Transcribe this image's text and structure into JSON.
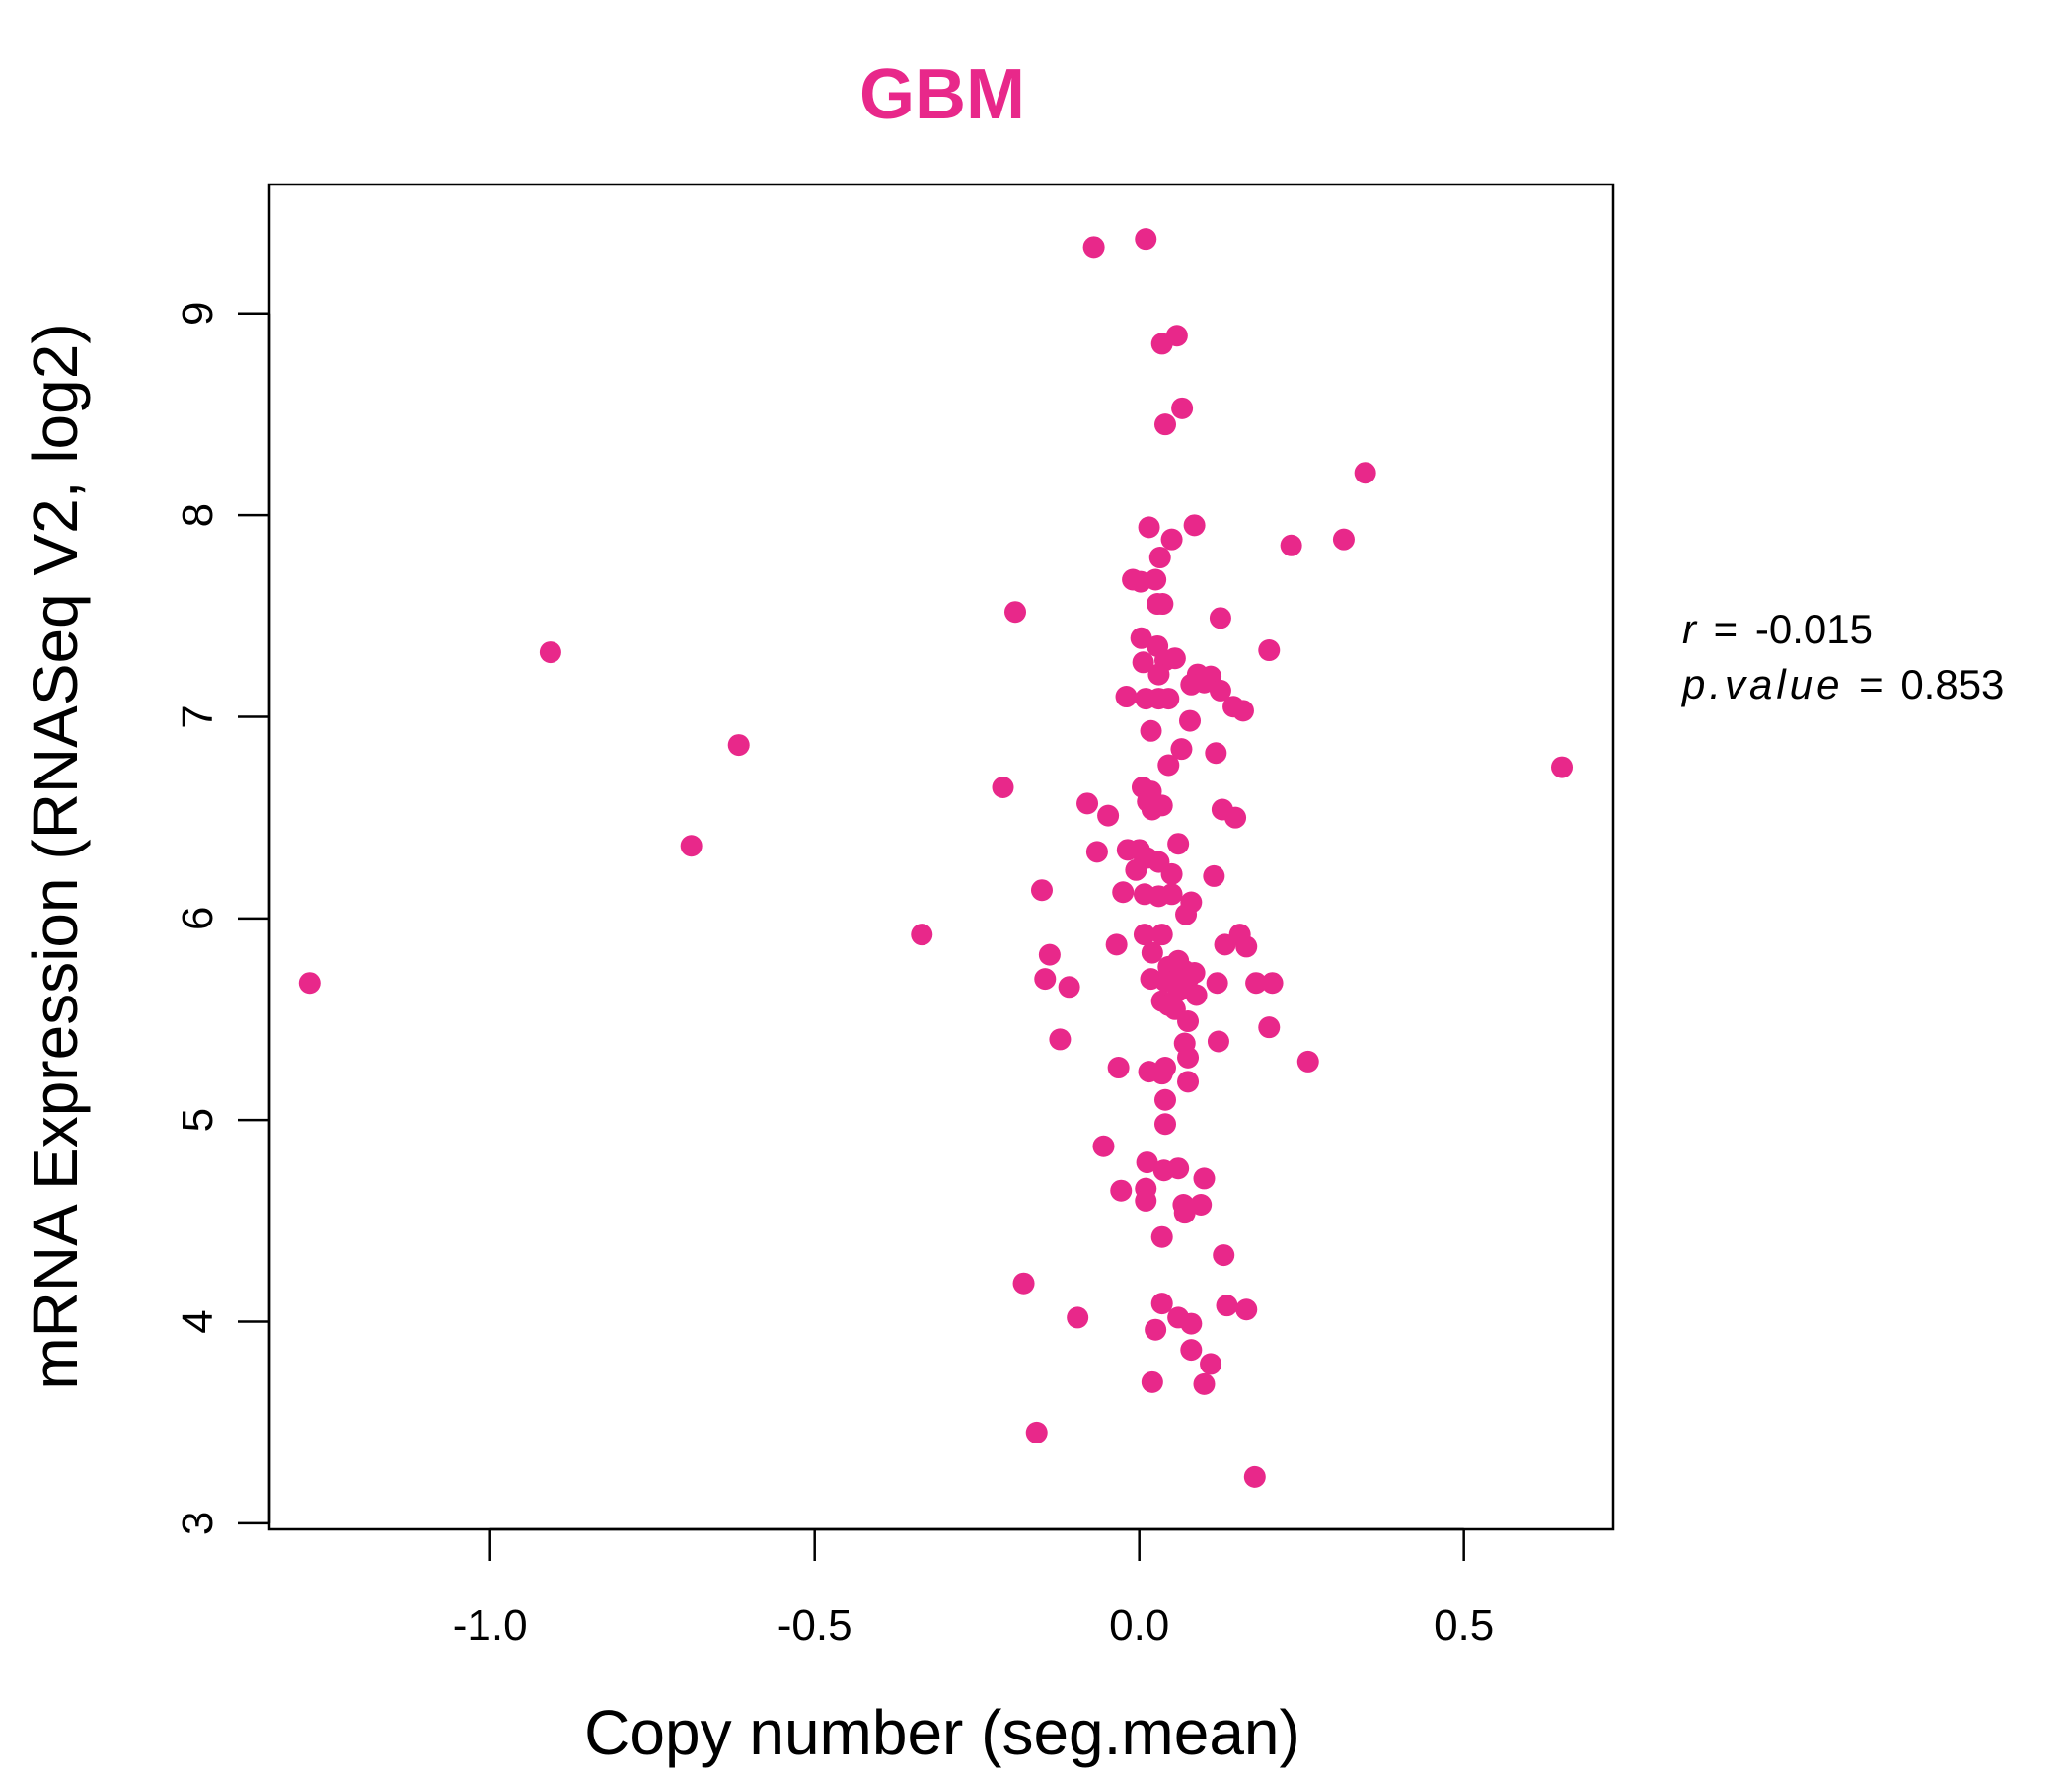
{
  "chart_data": {
    "type": "scatter",
    "title": "GBM",
    "xlabel": "Copy number (seg.mean)",
    "ylabel": "mRNA Expression (RNASeq V2, log2)",
    "xlim": [
      -1.34,
      0.73
    ],
    "ylim": [
      2.97,
      9.64
    ],
    "xticks": [
      -1.0,
      -0.5,
      0.0,
      0.5
    ],
    "xtick_labels": [
      "-1.0",
      "-0.5",
      "0.0",
      "0.5"
    ],
    "yticks": [
      3,
      4,
      5,
      6,
      7,
      8,
      9
    ],
    "ytick_labels": [
      "3",
      "4",
      "5",
      "6",
      "7",
      "8",
      "9"
    ],
    "grid": false,
    "point_color": "#e8288a",
    "title_color": "#e8288a",
    "stats": {
      "r_label": "r",
      "r_value": "-0.015",
      "p_label": "p.value",
      "p_value": "0.853",
      "eq": "="
    },
    "points": [
      [
        -0.07,
        9.33
      ],
      [
        0.01,
        9.37
      ],
      [
        0.035,
        8.85
      ],
      [
        0.058,
        8.89
      ],
      [
        0.066,
        8.53
      ],
      [
        0.04,
        8.45
      ],
      [
        0.348,
        8.21
      ],
      [
        0.015,
        7.94
      ],
      [
        0.085,
        7.95
      ],
      [
        0.05,
        7.88
      ],
      [
        0.315,
        7.88
      ],
      [
        0.234,
        7.85
      ],
      [
        0.032,
        7.79
      ],
      [
        -0.01,
        7.68
      ],
      [
        0.002,
        7.67
      ],
      [
        0.025,
        7.68
      ],
      [
        0.036,
        7.56
      ],
      [
        0.028,
        7.56
      ],
      [
        -0.191,
        7.52
      ],
      [
        -0.907,
        7.32
      ],
      [
        0.125,
        7.49
      ],
      [
        0.003,
        7.39
      ],
      [
        0.028,
        7.35
      ],
      [
        0.2,
        7.33
      ],
      [
        0.006,
        7.27
      ],
      [
        0.04,
        7.28
      ],
      [
        0.055,
        7.29
      ],
      [
        0.03,
        7.21
      ],
      [
        0.09,
        7.21
      ],
      [
        0.11,
        7.2
      ],
      [
        0.1,
        7.17
      ],
      [
        0.08,
        7.16
      ],
      [
        0.125,
        7.13
      ],
      [
        -0.02,
        7.1
      ],
      [
        0.01,
        7.09
      ],
      [
        0.03,
        7.09
      ],
      [
        0.045,
        7.09
      ],
      [
        0.145,
        7.05
      ],
      [
        0.16,
        7.03
      ],
      [
        0.078,
        6.98
      ],
      [
        0.018,
        6.93
      ],
      [
        0.065,
        6.84
      ],
      [
        0.118,
        6.82
      ],
      [
        0.045,
        6.76
      ],
      [
        0.651,
        6.75
      ],
      [
        -0.617,
        6.86
      ],
      [
        -0.21,
        6.65
      ],
      [
        0.005,
        6.65
      ],
      [
        0.018,
        6.63
      ],
      [
        0.013,
        6.58
      ],
      [
        0.035,
        6.56
      ],
      [
        0.02,
        6.54
      ],
      [
        -0.08,
        6.57
      ],
      [
        -0.048,
        6.51
      ],
      [
        0.128,
        6.54
      ],
      [
        0.148,
        6.5
      ],
      [
        0.06,
        6.37
      ],
      [
        -0.69,
        6.36
      ],
      [
        -0.065,
        6.33
      ],
      [
        -0.018,
        6.34
      ],
      [
        0.0,
        6.34
      ],
      [
        0.012,
        6.3
      ],
      [
        0.03,
        6.28
      ],
      [
        -0.005,
        6.24
      ],
      [
        0.05,
        6.22
      ],
      [
        0.115,
        6.21
      ],
      [
        -0.15,
        6.14
      ],
      [
        -0.025,
        6.13
      ],
      [
        0.008,
        6.12
      ],
      [
        0.03,
        6.11
      ],
      [
        0.05,
        6.12
      ],
      [
        0.08,
        6.08
      ],
      [
        0.072,
        6.02
      ],
      [
        -0.335,
        5.92
      ],
      [
        0.008,
        5.92
      ],
      [
        0.035,
        5.92
      ],
      [
        0.155,
        5.92
      ],
      [
        0.132,
        5.87
      ],
      [
        0.165,
        5.86
      ],
      [
        -0.035,
        5.87
      ],
      [
        0.02,
        5.83
      ],
      [
        -0.138,
        5.82
      ],
      [
        0.06,
        5.79
      ],
      [
        0.045,
        5.76
      ],
      [
        0.07,
        5.74
      ],
      [
        0.085,
        5.73
      ],
      [
        0.075,
        5.7
      ],
      [
        0.018,
        5.7
      ],
      [
        0.04,
        5.69
      ],
      [
        0.055,
        5.69
      ],
      [
        0.065,
        5.67
      ],
      [
        0.12,
        5.68
      ],
      [
        0.18,
        5.68
      ],
      [
        0.205,
        5.68
      ],
      [
        -0.145,
        5.7
      ],
      [
        -0.108,
        5.66
      ],
      [
        0.06,
        5.64
      ],
      [
        0.088,
        5.62
      ],
      [
        0.035,
        5.59
      ],
      [
        0.045,
        5.57
      ],
      [
        0.055,
        5.55
      ],
      [
        0.075,
        5.49
      ],
      [
        0.2,
        5.46
      ],
      [
        -0.122,
        5.4
      ],
      [
        0.122,
        5.39
      ],
      [
        0.07,
        5.38
      ],
      [
        0.075,
        5.31
      ],
      [
        0.26,
        5.29
      ],
      [
        -0.032,
        5.26
      ],
      [
        0.015,
        5.24
      ],
      [
        0.04,
        5.26
      ],
      [
        0.035,
        5.23
      ],
      [
        0.075,
        5.19
      ],
      [
        0.04,
        5.1
      ],
      [
        0.04,
        4.98
      ],
      [
        -0.055,
        4.87
      ],
      [
        0.012,
        4.79
      ],
      [
        0.038,
        4.75
      ],
      [
        0.06,
        4.76
      ],
      [
        0.1,
        4.71
      ],
      [
        0.01,
        4.66
      ],
      [
        -0.028,
        4.65
      ],
      [
        0.01,
        4.6
      ],
      [
        0.068,
        4.58
      ],
      [
        0.095,
        4.58
      ],
      [
        0.07,
        4.54
      ],
      [
        0.035,
        4.42
      ],
      [
        0.13,
        4.33
      ],
      [
        -0.178,
        4.19
      ],
      [
        0.035,
        4.09
      ],
      [
        0.135,
        4.08
      ],
      [
        0.165,
        4.06
      ],
      [
        -0.095,
        4.02
      ],
      [
        0.06,
        4.02
      ],
      [
        0.08,
        3.99
      ],
      [
        0.025,
        3.96
      ],
      [
        0.08,
        3.86
      ],
      [
        0.11,
        3.79
      ],
      [
        0.02,
        3.7
      ],
      [
        0.1,
        3.69
      ],
      [
        -0.158,
        3.45
      ],
      [
        0.178,
        3.23
      ],
      [
        -1.278,
        5.68
      ]
    ]
  }
}
